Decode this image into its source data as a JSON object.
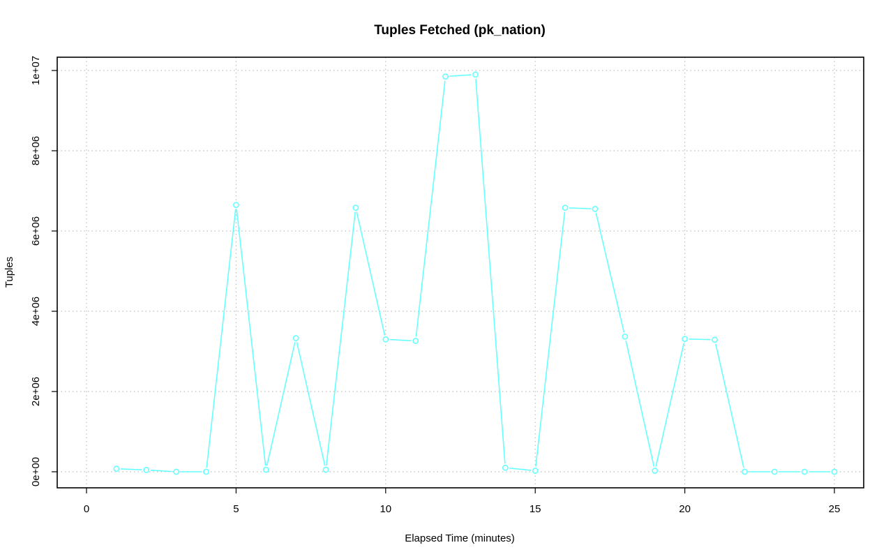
{
  "chart_data": {
    "type": "line",
    "title": "Tuples Fetched (pk_nation)",
    "xlabel": "Elapsed Time (minutes)",
    "ylabel": "Tuples",
    "xlim": [
      0,
      25
    ],
    "ylim": [
      0,
      10000000
    ],
    "x_ticks": [
      0,
      5,
      10,
      15,
      20,
      25
    ],
    "x_tick_labels": [
      "0",
      "5",
      "10",
      "15",
      "20",
      "25"
    ],
    "y_ticks": [
      0,
      2000000,
      4000000,
      6000000,
      8000000,
      10000000
    ],
    "y_tick_labels": [
      "0e+00",
      "2e+06",
      "4e+06",
      "6e+06",
      "8e+06",
      "1e+07"
    ],
    "grid": true,
    "series_color": "#66ffff",
    "series": [
      {
        "x": [
          1,
          2,
          3,
          4,
          5,
          6,
          7,
          8,
          9,
          10,
          11,
          12,
          13,
          14,
          15,
          16,
          17,
          18,
          19,
          20,
          21,
          22,
          23,
          24,
          25
        ],
        "values": [
          75000,
          45000,
          0,
          0,
          6650000,
          50000,
          3330000,
          50000,
          6580000,
          3300000,
          3260000,
          9850000,
          9900000,
          100000,
          25000,
          6580000,
          6550000,
          3370000,
          25000,
          3310000,
          3290000,
          0,
          0,
          0,
          0
        ]
      }
    ]
  }
}
